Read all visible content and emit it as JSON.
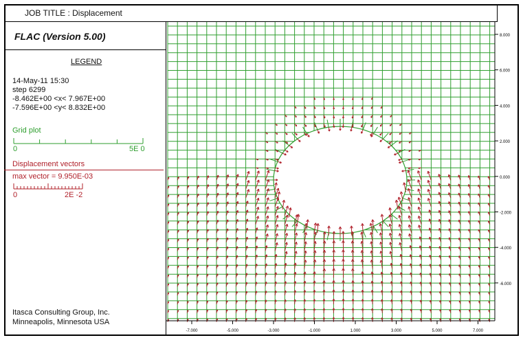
{
  "header": {
    "job_title": "JOB TITLE : Displacement"
  },
  "panel": {
    "app_title": "FLAC (Version 5.00)",
    "legend_title": "LEGEND",
    "date": "14-May-11  15:30",
    "step": "step     6299",
    "x_range": "-8.462E+00 <x<  7.967E+00",
    "y_range": "-7.596E+00 <y<  8.832E+00",
    "grid_plot": {
      "label": "Grid plot",
      "scale_min": "0",
      "scale_max": "5E 0",
      "color": "#2e9e2e"
    },
    "displacement": {
      "label": "Displacement vectors",
      "max_vector": "max vector =    9.950E-03",
      "scale_min": "0",
      "scale_max": "2E -2",
      "color": "#b0202a"
    },
    "footer_line1": "Itasca Consulting Group, Inc.",
    "footer_line2": "Minneapolis, Minnesota  USA"
  },
  "plot": {
    "x_ticks": [
      "-7.000",
      "-5.000",
      "-3.000",
      "-1.000",
      "1.000",
      "3.000",
      "5.000",
      "7.000"
    ],
    "y_ticks": [
      "8.000",
      "6.000",
      "4.000",
      "2.000",
      "0.000",
      "-2.000",
      "-4.000",
      "-6.000"
    ],
    "grid_color": "#2e9e2e",
    "vector_color": "#b0202a"
  }
}
